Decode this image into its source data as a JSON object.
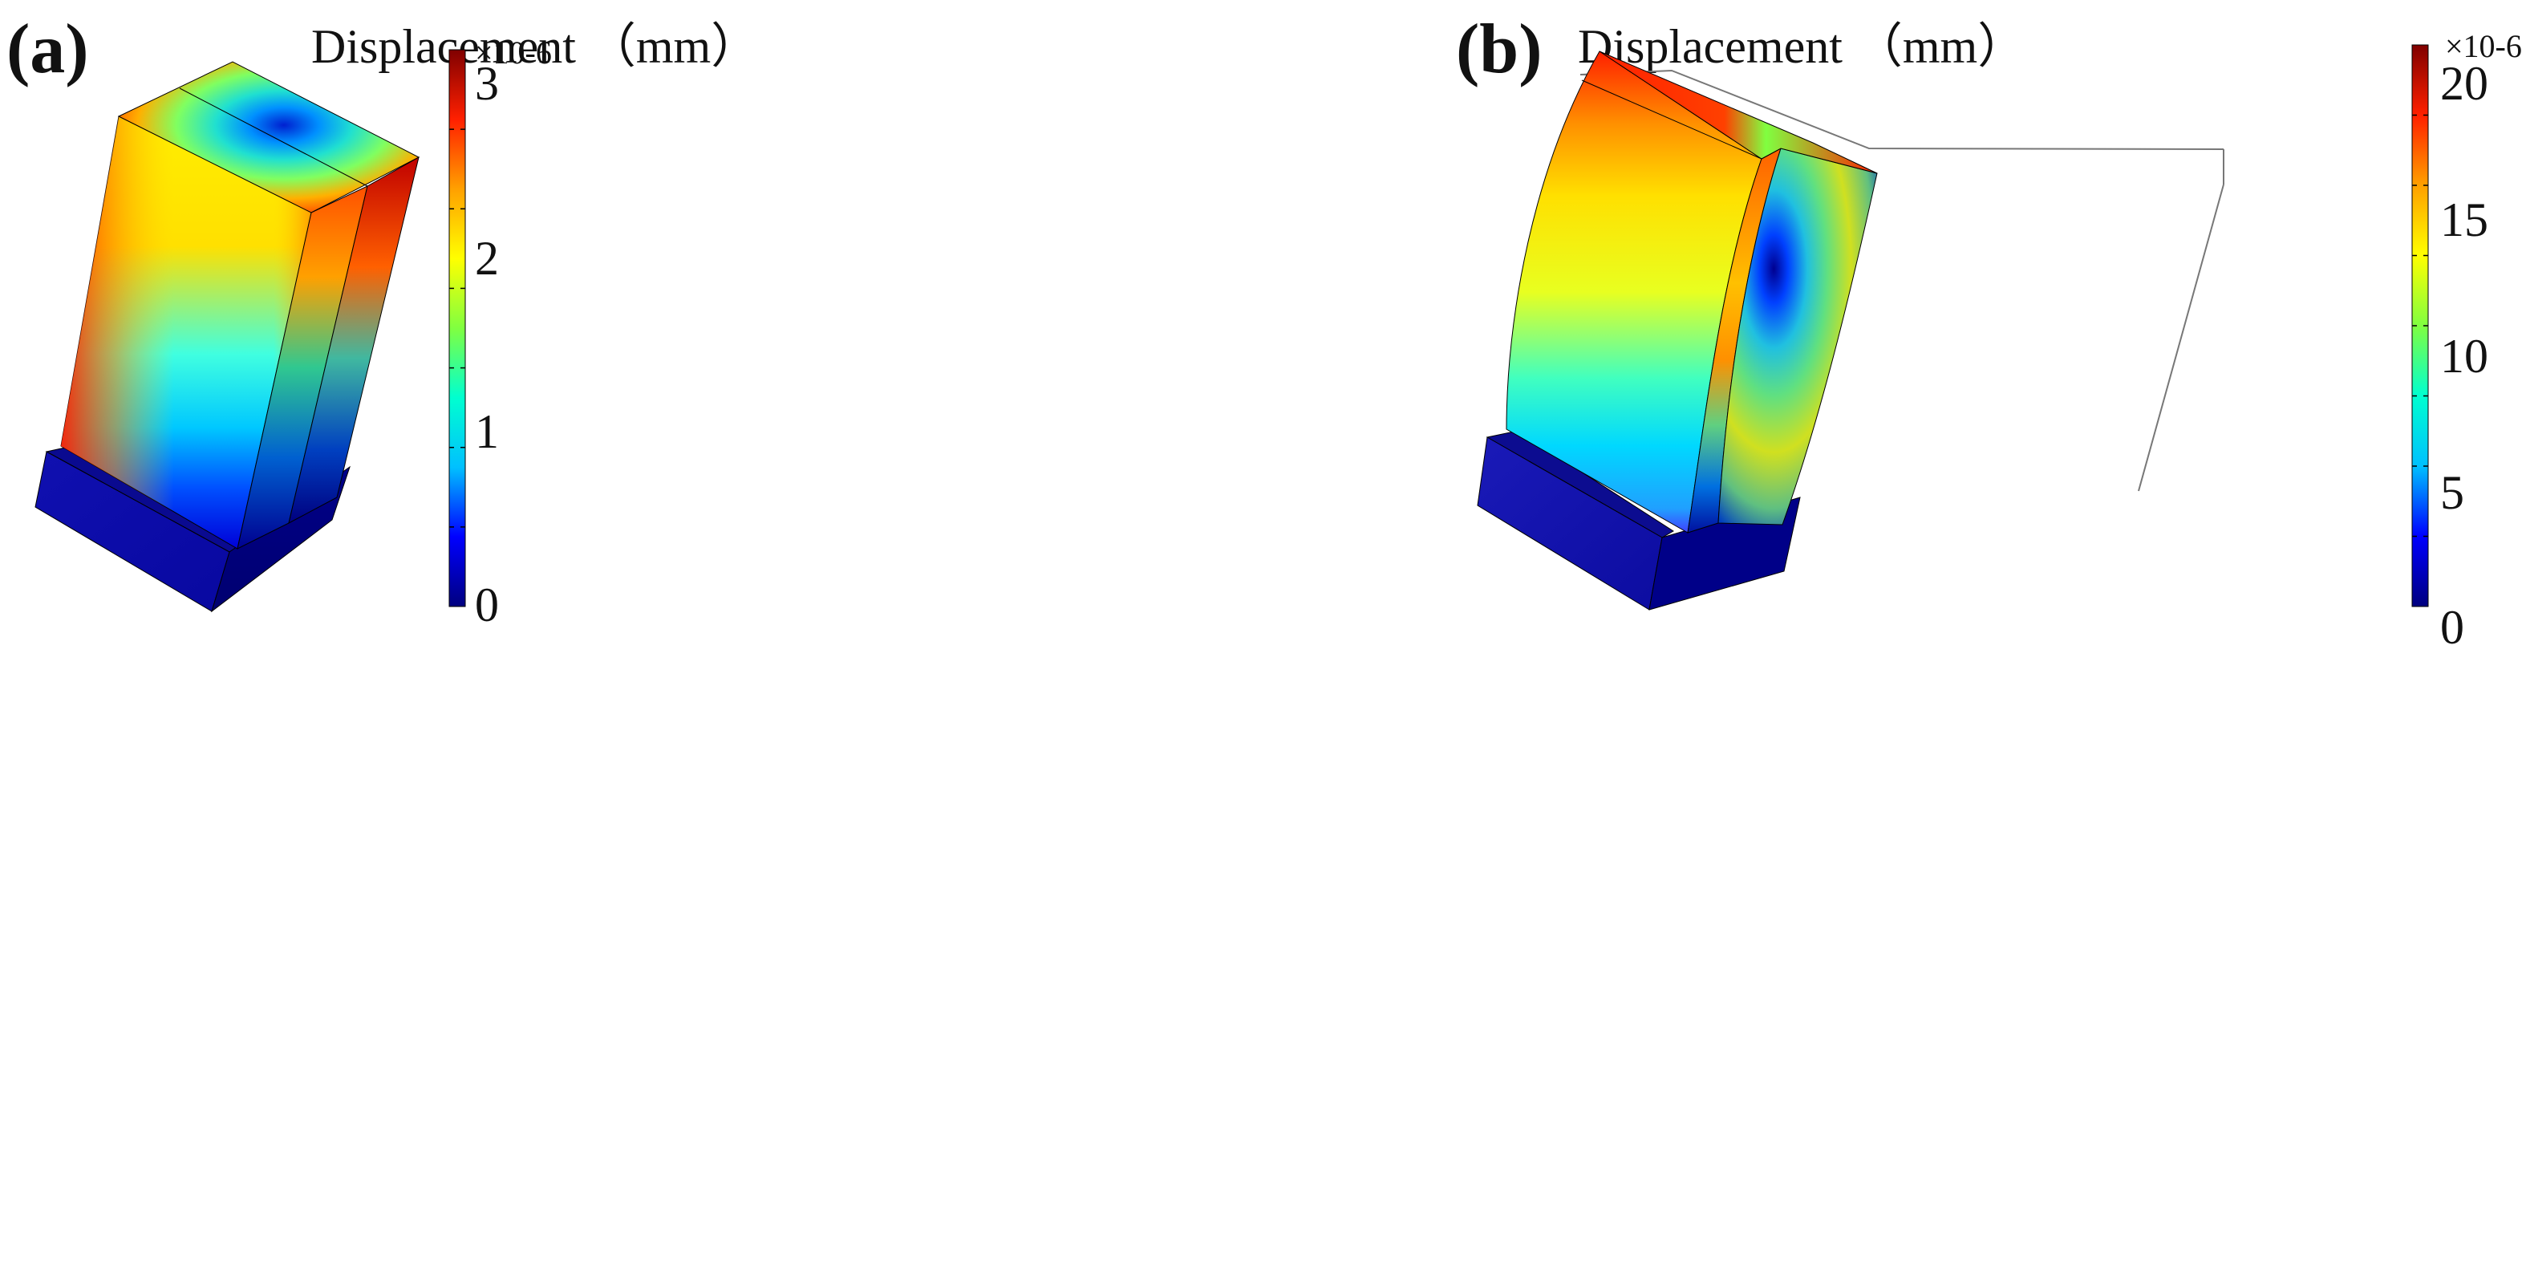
{
  "panels": [
    {
      "label": "(a)",
      "title": "Displacement （mm）",
      "colorbar": {
        "multiplier": "×10-6",
        "ticks": [
          "3",
          "2",
          "1",
          "0"
        ],
        "min": 0,
        "max": 3.2
      }
    },
    {
      "label": "(b)",
      "title": "Displacement （mm）",
      "colorbar": {
        "multiplier": "×10-6",
        "ticks": [
          "20",
          "15",
          "10",
          "5",
          "0"
        ],
        "min": 0,
        "max": 21
      }
    }
  ],
  "colormap": [
    "#00007f",
    "#0000ff",
    "#00c0ff",
    "#00ffd0",
    "#80ff40",
    "#ffff00",
    "#ffa000",
    "#ff2000",
    "#800000"
  ]
}
